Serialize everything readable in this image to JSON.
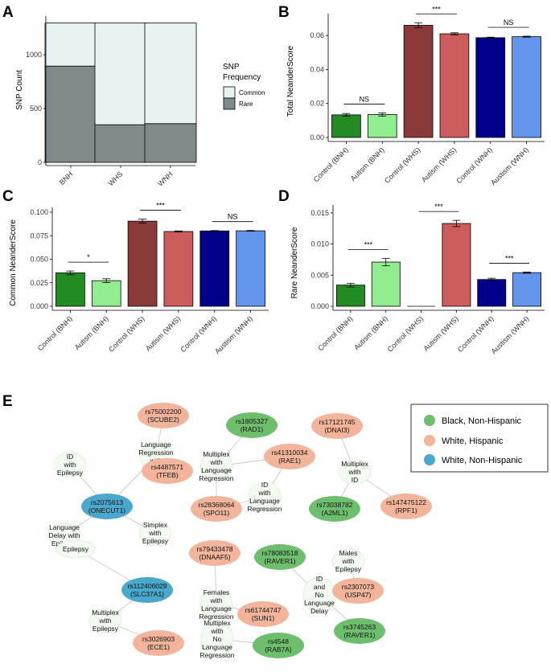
{
  "panels": {
    "A": "A",
    "B": "B",
    "C": "C",
    "D": "D",
    "E": "E"
  },
  "colors": {
    "control_bnh": "#228B22",
    "autism_bnh": "#90EE90",
    "control_whs": "#8B3A3A",
    "autism_whs": "#CD5C5C",
    "control_wnh": "#00008B",
    "autism_wnh": "#6495ED",
    "common": "#E8F2F2",
    "rare": "#7F8B8B",
    "node_black": "#6DBF6D",
    "node_white_hispanic": "#F2B49B",
    "node_white_non_hispanic": "#4AA8CC",
    "node_phenotype": "#F4FBF2"
  },
  "chart_data": [
    {
      "panel": "A",
      "type": "bar",
      "stacked": true,
      "categories": [
        "BNH",
        "WHS",
        "WNH"
      ],
      "series": [
        {
          "name": "Rare",
          "values": [
            895,
            350,
            360
          ]
        },
        {
          "name": "Common",
          "values": [
            400,
            945,
            935
          ]
        }
      ],
      "ylabel": "SNP Count",
      "ylim": [
        0,
        1300
      ],
      "yticks": [
        "0",
        "500",
        "1000"
      ],
      "legend_title": "SNP Frequency",
      "legend_labels": [
        "Common",
        "Rare"
      ],
      "legend_position": "right"
    },
    {
      "panel": "B",
      "type": "bar",
      "categories": [
        "Control (BNH)",
        "Autism (BNH)",
        "Control (WHS)",
        "Autism (WHS)",
        "Control (WNH)",
        "Austism (WNH)"
      ],
      "values": [
        0.0133,
        0.0135,
        0.066,
        0.061,
        0.0587,
        0.0593
      ],
      "errors": [
        0.0008,
        0.0009,
        0.0015,
        0.0006,
        0.0003,
        0.0003
      ],
      "ylabel": "Total NeanderScore",
      "ylim": [
        0,
        0.07
      ],
      "yticks": [
        "0.00",
        "0.02",
        "0.04",
        "0.06"
      ],
      "significance": [
        {
          "from": 0,
          "to": 1,
          "label": "NS"
        },
        {
          "from": 2,
          "to": 3,
          "label": "***"
        },
        {
          "from": 4,
          "to": 5,
          "label": "NS"
        }
      ]
    },
    {
      "panel": "C",
      "type": "bar",
      "categories": [
        "Control (BNH)",
        "Autism (BNH)",
        "Control (WHS)",
        "Autism (WHS)",
        "Control (WNH)",
        "Austism (WNH)"
      ],
      "values": [
        0.0355,
        0.0272,
        0.0905,
        0.0795,
        0.0801,
        0.0802
      ],
      "errors": [
        0.002,
        0.002,
        0.0022,
        0.0006,
        0.0004,
        0.0004
      ],
      "ylabel": "Common NeanderScore",
      "ylim": [
        0,
        0.1
      ],
      "yticks": [
        "0.000",
        "0.025",
        "0.050",
        "0.075",
        "0.100"
      ],
      "significance": [
        {
          "from": 0,
          "to": 1,
          "label": "*"
        },
        {
          "from": 2,
          "to": 3,
          "label": "***"
        },
        {
          "from": 4,
          "to": 5,
          "label": "NS"
        }
      ]
    },
    {
      "panel": "D",
      "type": "bar",
      "categories": [
        "Control (BNH)",
        "Autism (BNH)",
        "Control (WHS)",
        "Autism (WHS)",
        "Control (WNH)",
        "Austism (WNH)"
      ],
      "values": [
        0.0034,
        0.0071,
        0.0,
        0.0133,
        0.0043,
        0.0054
      ],
      "errors": [
        0.0003,
        0.0006,
        0.0,
        0.0005,
        0.0002,
        0.0001
      ],
      "ylabel": "Rare NeanderScore",
      "ylim": [
        0,
        0.0155
      ],
      "yticks": [
        "0.000",
        "0.005",
        "0.010",
        "0.015"
      ],
      "significance": [
        {
          "from": 0,
          "to": 1,
          "label": "***"
        },
        {
          "from": 2,
          "to": 3,
          "label": "***"
        },
        {
          "from": 4,
          "to": 5,
          "label": "***"
        }
      ]
    }
  ],
  "network": {
    "legend": [
      {
        "label": "Black, Non-Hispanic",
        "group": "black"
      },
      {
        "label": "White, Hispanic",
        "group": "white_hispanic"
      },
      {
        "label": "White, Non-Hispanic",
        "group": "white_non_hispanic"
      }
    ],
    "nodes": [
      {
        "id": "scube2",
        "kind": "snp",
        "group": "white_hispanic",
        "lines": [
          "rs75002200",
          "(SCUBE2)"
        ]
      },
      {
        "id": "lre",
        "kind": "phenotype",
        "lines": [
          "Language",
          "Regression",
          "with",
          "Epilepsy"
        ]
      },
      {
        "id": "tfeb",
        "kind": "snp",
        "group": "white_hispanic",
        "lines": [
          "rs4487571",
          "(TFEB)"
        ]
      },
      {
        "id": "idep",
        "kind": "phenotype",
        "lines": [
          "ID",
          "with",
          "Epilepsy"
        ]
      },
      {
        "id": "onecut1",
        "kind": "snp",
        "group": "white_non_hispanic",
        "lines": [
          "rs2075613",
          "(ONECUT1)"
        ]
      },
      {
        "id": "ldep",
        "kind": "phenotype",
        "lines": [
          "Language",
          "Delay with",
          "Epilepsy"
        ]
      },
      {
        "id": "simplex",
        "kind": "phenotype",
        "lines": [
          "Simplex",
          "with",
          "Epilepsy"
        ]
      },
      {
        "id": "rad1",
        "kind": "snp",
        "group": "black",
        "lines": [
          "rs1805327",
          "(RAD1)"
        ]
      },
      {
        "id": "mlr",
        "kind": "phenotype",
        "lines": [
          "Multiplex",
          "with",
          "Language",
          "Regression"
        ]
      },
      {
        "id": "rae1",
        "kind": "snp",
        "group": "white_hispanic",
        "lines": [
          "rs41310034",
          "(RAE1)"
        ]
      },
      {
        "id": "idlr",
        "kind": "phenotype",
        "lines": [
          "ID",
          "with",
          "Language",
          "Regression"
        ]
      },
      {
        "id": "spo11",
        "kind": "snp",
        "group": "white_hispanic",
        "lines": [
          "rs28368064",
          "(SPO11)"
        ]
      },
      {
        "id": "dnai3",
        "kind": "snp",
        "group": "white_hispanic",
        "lines": [
          "rs17121745",
          "(DNAI3)"
        ]
      },
      {
        "id": "mwid",
        "kind": "phenotype",
        "lines": [
          "Multiplex",
          "with",
          "ID"
        ]
      },
      {
        "id": "a2ml1",
        "kind": "snp",
        "group": "black",
        "lines": [
          "rs73038782",
          "(A2ML1)"
        ]
      },
      {
        "id": "rpf1",
        "kind": "snp",
        "group": "white_hispanic",
        "lines": [
          "rs147475122",
          "(RPF1)"
        ]
      },
      {
        "id": "dnaaf5",
        "kind": "snp",
        "group": "white_hispanic",
        "lines": [
          "rs79433478",
          "(DNAAF5)"
        ]
      },
      {
        "id": "flr",
        "kind": "phenotype",
        "lines": [
          "Females",
          "with",
          "Language",
          "Regression"
        ]
      },
      {
        "id": "sun1",
        "kind": "snp",
        "group": "white_hispanic",
        "lines": [
          "rs61744747",
          "(SUN1)"
        ]
      },
      {
        "id": "raver1a",
        "kind": "snp",
        "group": "black",
        "lines": [
          "rs78083518",
          "(RAVER1)"
        ]
      },
      {
        "id": "idnld",
        "kind": "phenotype",
        "lines": [
          "ID",
          "and",
          "No",
          "Language",
          "Delay"
        ]
      },
      {
        "id": "raver1b",
        "kind": "snp",
        "group": "black",
        "lines": [
          "rs3745263",
          "(RAVER1)"
        ]
      },
      {
        "id": "males",
        "kind": "phenotype",
        "lines": [
          "Males",
          "with",
          "Epilepsy"
        ]
      },
      {
        "id": "usp47",
        "kind": "snp",
        "group": "white_hispanic",
        "lines": [
          "rs2307073",
          "(USP47)"
        ]
      },
      {
        "id": "epilepsy",
        "kind": "phenotype",
        "lines": [
          "Epilepsy"
        ]
      },
      {
        "id": "slc37a1",
        "kind": "snp",
        "group": "white_non_hispanic",
        "lines": [
          "rs112406029",
          "(SLC37A1)"
        ]
      },
      {
        "id": "mwep",
        "kind": "phenotype",
        "lines": [
          "Multiplex",
          "with",
          "Epilepsy"
        ]
      },
      {
        "id": "ece1",
        "kind": "snp",
        "group": "white_hispanic",
        "lines": [
          "rs3026903",
          "(ECE1)"
        ]
      },
      {
        "id": "mnlr",
        "kind": "phenotype",
        "lines": [
          "Multiplex",
          "with",
          "No",
          "Language",
          "Regression"
        ]
      },
      {
        "id": "rab7a",
        "kind": "snp",
        "group": "black",
        "lines": [
          "rs4548",
          "(RAB7A)"
        ]
      }
    ],
    "edges": [
      [
        "scube2",
        "lre"
      ],
      [
        "lre",
        "tfeb"
      ],
      [
        "lre",
        "onecut1"
      ],
      [
        "idep",
        "onecut1"
      ],
      [
        "onecut1",
        "ldep"
      ],
      [
        "onecut1",
        "simplex"
      ],
      [
        "rad1",
        "mlr"
      ],
      [
        "mlr",
        "rae1"
      ],
      [
        "mlr",
        "spo11"
      ],
      [
        "rae1",
        "idlr"
      ],
      [
        "idlr",
        "spo11"
      ],
      [
        "dnai3",
        "mwid"
      ],
      [
        "mwid",
        "a2ml1"
      ],
      [
        "mwid",
        "rpf1"
      ],
      [
        "dnaaf5",
        "flr"
      ],
      [
        "flr",
        "sun1"
      ],
      [
        "raver1a",
        "idnld"
      ],
      [
        "idnld",
        "raver1b"
      ],
      [
        "males",
        "usp47"
      ],
      [
        "epilepsy",
        "slc37a1"
      ],
      [
        "slc37a1",
        "mwep"
      ],
      [
        "mwep",
        "ece1"
      ],
      [
        "mnlr",
        "rab7a"
      ]
    ]
  }
}
